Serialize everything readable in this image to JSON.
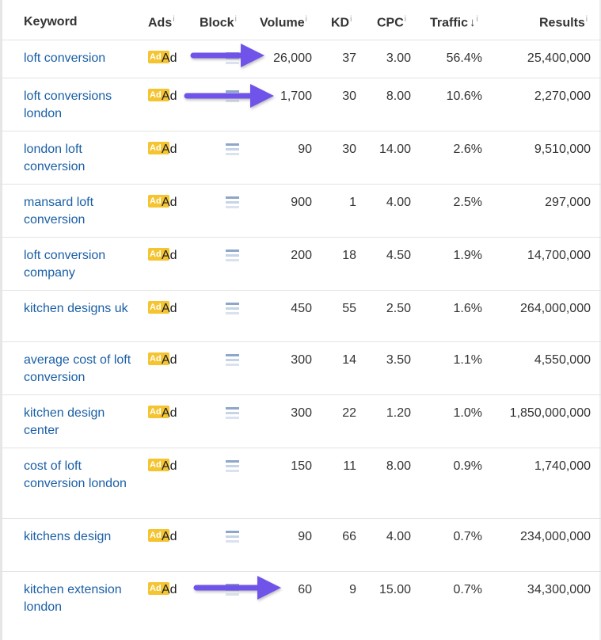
{
  "headers": {
    "keyword": "Keyword",
    "ads": "Ads",
    "block": "Block",
    "volume": "Volume",
    "kd": "KD",
    "cpc": "CPC",
    "traffic": "Traffic",
    "results": "Results",
    "info_glyph": "i",
    "sort_glyph": "↓"
  },
  "ad_badge": {
    "tag": "Ad",
    "text": "Ad"
  },
  "rows": [
    {
      "keyword": "loft conversion",
      "volume": "26,000",
      "kd": "37",
      "cpc": "3.00",
      "traffic": "56.4%",
      "results": "25,400,000"
    },
    {
      "keyword": "loft conversions london",
      "volume": "1,700",
      "kd": "30",
      "cpc": "8.00",
      "traffic": "10.6%",
      "results": "2,270,000"
    },
    {
      "keyword": "london loft conversion",
      "volume": "90",
      "kd": "30",
      "cpc": "14.00",
      "traffic": "2.6%",
      "results": "9,510,000"
    },
    {
      "keyword": "mansard loft conversion",
      "volume": "900",
      "kd": "1",
      "cpc": "4.00",
      "traffic": "2.5%",
      "results": "297,000"
    },
    {
      "keyword": "loft conversion company",
      "volume": "200",
      "kd": "18",
      "cpc": "4.50",
      "traffic": "1.9%",
      "results": "14,700,000"
    },
    {
      "keyword": "kitchen designs uk",
      "volume": "450",
      "kd": "55",
      "cpc": "2.50",
      "traffic": "1.6%",
      "results": "264,000,000"
    },
    {
      "keyword": "average cost of loft conversion",
      "volume": "300",
      "kd": "14",
      "cpc": "3.50",
      "traffic": "1.1%",
      "results": "4,550,000"
    },
    {
      "keyword": "kitchen design center",
      "volume": "300",
      "kd": "22",
      "cpc": "1.20",
      "traffic": "1.0%",
      "results": "1,850,000,000"
    },
    {
      "keyword": "cost of loft conversion london",
      "volume": "150",
      "kd": "11",
      "cpc": "8.00",
      "traffic": "0.9%",
      "results": "1,740,000"
    },
    {
      "keyword": "kitchens design",
      "volume": "90",
      "kd": "66",
      "cpc": "4.00",
      "traffic": "0.7%",
      "results": "234,000,000"
    },
    {
      "keyword": "kitchen extension london",
      "volume": "60",
      "kd": "9",
      "cpc": "15.00",
      "traffic": "0.7%",
      "results": "34,300,000"
    }
  ],
  "colors": {
    "keyword_link": "#1a5fa6",
    "ad_badge": "#f4c431",
    "annotation_arrow": "#6f52e8"
  },
  "annotations": {
    "arrow_rows": [
      0,
      1,
      10
    ]
  }
}
